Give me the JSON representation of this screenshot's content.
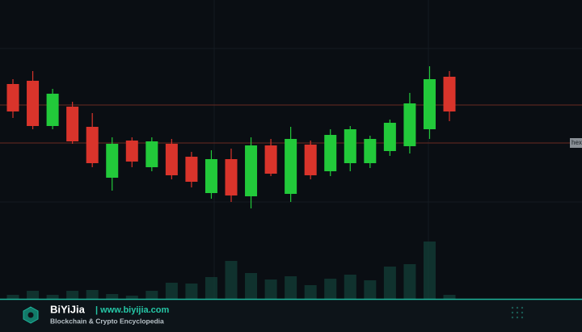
{
  "chart_data": {
    "type": "candlestick",
    "open": [
      307,
      311,
      255,
      279,
      254,
      191,
      237,
      204,
      233,
      217,
      172,
      214,
      168,
      231,
      171,
      232,
      199,
      209,
      209,
      224,
      230,
      251,
      316
    ],
    "high": [
      313,
      323,
      301,
      285,
      271,
      241,
      241,
      241,
      239,
      223,
      225,
      227,
      241,
      239,
      254,
      237,
      251,
      255,
      243,
      263,
      296,
      329,
      323
    ],
    "low": [
      265,
      251,
      251,
      233,
      204,
      175,
      204,
      199,
      189,
      179,
      165,
      161,
      153,
      193,
      161,
      189,
      193,
      199,
      203,
      218,
      221,
      239,
      261
    ],
    "close": [
      273,
      255,
      295,
      236,
      209,
      233,
      211,
      236,
      194,
      186,
      214,
      169,
      231,
      196,
      239,
      194,
      244,
      251,
      239,
      259,
      283,
      313,
      273
    ],
    "volume": [
      5,
      10,
      5,
      10,
      11,
      6,
      4,
      10,
      20,
      19,
      27,
      47,
      32,
      24,
      28,
      17,
      25,
      30,
      23,
      40,
      43,
      71,
      5
    ],
    "up_color": "#22c93a",
    "down_color": "#d9342b",
    "volume_color": "#123c36",
    "ylim": [
      0,
      411
    ],
    "y2lim": [
      0,
      411
    ],
    "levels": [
      281,
      234
    ],
    "level_color": "#6b2a22",
    "level_label": "hexu"
  },
  "footer": {
    "brand": "BiYiJia",
    "url": "| www.biyijia.com",
    "tagline": "Blockchain & Crypto Encyclopedia"
  }
}
